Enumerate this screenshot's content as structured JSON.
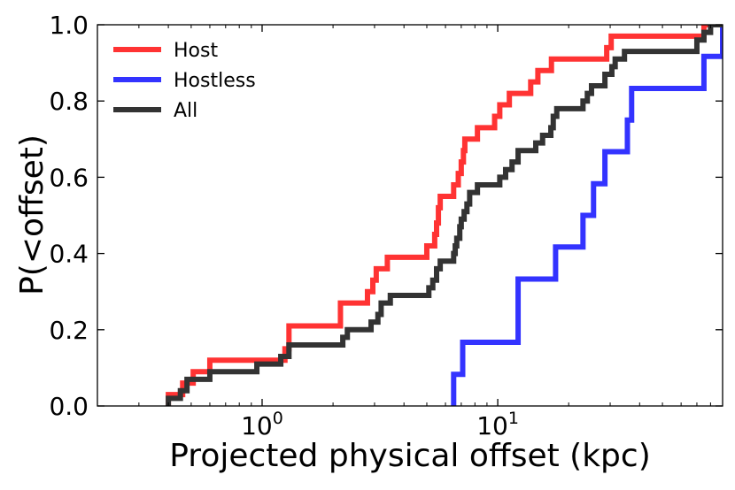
{
  "chart_data": {
    "type": "line",
    "subtype": "cumulative-step",
    "title": "",
    "xlabel": "Projected physical offset (kpc)",
    "ylabel": "P(<offset)",
    "xscale": "log",
    "xlim": [
      0.2,
      90
    ],
    "ylim": [
      0.0,
      1.0
    ],
    "x_major_ticks": [
      {
        "value": 1,
        "base": "10",
        "exp": "0"
      },
      {
        "value": 10,
        "base": "10",
        "exp": "1"
      }
    ],
    "y_ticks": [
      {
        "value": 0.0,
        "label": "0.0"
      },
      {
        "value": 0.2,
        "label": "0.2"
      },
      {
        "value": 0.4,
        "label": "0.4"
      },
      {
        "value": 0.6,
        "label": "0.6"
      },
      {
        "value": 0.8,
        "label": "0.8"
      },
      {
        "value": 1.0,
        "label": "1.0"
      }
    ],
    "legend_position": "top-left",
    "series": [
      {
        "name": "Host",
        "color": "#ff3333",
        "points": [
          [
            0.4,
            0.03
          ],
          [
            0.46,
            0.06
          ],
          [
            0.51,
            0.09
          ],
          [
            0.6,
            0.12
          ],
          [
            1.25,
            0.15
          ],
          [
            1.3,
            0.21
          ],
          [
            2.15,
            0.27
          ],
          [
            2.8,
            0.3
          ],
          [
            2.95,
            0.33
          ],
          [
            3.05,
            0.36
          ],
          [
            3.4,
            0.39
          ],
          [
            5.0,
            0.42
          ],
          [
            5.4,
            0.45
          ],
          [
            5.5,
            0.48
          ],
          [
            5.6,
            0.52
          ],
          [
            5.7,
            0.55
          ],
          [
            6.5,
            0.58
          ],
          [
            6.8,
            0.61
          ],
          [
            7.0,
            0.64
          ],
          [
            7.15,
            0.67
          ],
          [
            7.25,
            0.7
          ],
          [
            8.2,
            0.73
          ],
          [
            9.7,
            0.76
          ],
          [
            10.2,
            0.79
          ],
          [
            11.2,
            0.82
          ],
          [
            13.8,
            0.85
          ],
          [
            14.8,
            0.88
          ],
          [
            16.9,
            0.91
          ],
          [
            29.0,
            0.94
          ],
          [
            30.3,
            0.97
          ],
          [
            75.0,
            1.0
          ]
        ],
        "end_x": 90
      },
      {
        "name": "Hostless",
        "color": "#3333ff",
        "points": [
          [
            6.5,
            0.083
          ],
          [
            7.1,
            0.167
          ],
          [
            12.2,
            0.333
          ],
          [
            17.6,
            0.417
          ],
          [
            23.0,
            0.5
          ],
          [
            25.5,
            0.583
          ],
          [
            28.5,
            0.667
          ],
          [
            35.5,
            0.75
          ],
          [
            37.0,
            0.833
          ],
          [
            75.0,
            0.917
          ],
          [
            90.0,
            1.0
          ]
        ],
        "end_x": 90
      },
      {
        "name": "All",
        "color": "#333333",
        "points": [
          [
            0.4,
            0.02
          ],
          [
            0.45,
            0.04
          ],
          [
            0.48,
            0.07
          ],
          [
            0.6,
            0.09
          ],
          [
            0.95,
            0.11
          ],
          [
            1.2,
            0.13
          ],
          [
            1.3,
            0.16
          ],
          [
            2.2,
            0.18
          ],
          [
            2.3,
            0.2
          ],
          [
            2.9,
            0.22
          ],
          [
            3.1,
            0.24
          ],
          [
            3.2,
            0.27
          ],
          [
            3.5,
            0.29
          ],
          [
            5.1,
            0.31
          ],
          [
            5.3,
            0.33
          ],
          [
            5.5,
            0.36
          ],
          [
            5.7,
            0.38
          ],
          [
            6.5,
            0.4
          ],
          [
            6.6,
            0.42
          ],
          [
            6.7,
            0.44
          ],
          [
            6.9,
            0.47
          ],
          [
            7.0,
            0.49
          ],
          [
            7.2,
            0.51
          ],
          [
            7.4,
            0.53
          ],
          [
            7.6,
            0.56
          ],
          [
            8.2,
            0.58
          ],
          [
            10.2,
            0.6
          ],
          [
            10.8,
            0.62
          ],
          [
            11.5,
            0.64
          ],
          [
            12.2,
            0.67
          ],
          [
            14.5,
            0.69
          ],
          [
            15.5,
            0.71
          ],
          [
            16.8,
            0.73
          ],
          [
            17.2,
            0.76
          ],
          [
            17.8,
            0.78
          ],
          [
            23.0,
            0.8
          ],
          [
            24.0,
            0.82
          ],
          [
            25.0,
            0.84
          ],
          [
            28.5,
            0.87
          ],
          [
            30.5,
            0.89
          ],
          [
            31.5,
            0.91
          ],
          [
            34.5,
            0.93
          ],
          [
            70.0,
            0.96
          ],
          [
            75.0,
            0.98
          ],
          [
            80.0,
            1.0
          ]
        ],
        "end_x": 90
      }
    ]
  }
}
